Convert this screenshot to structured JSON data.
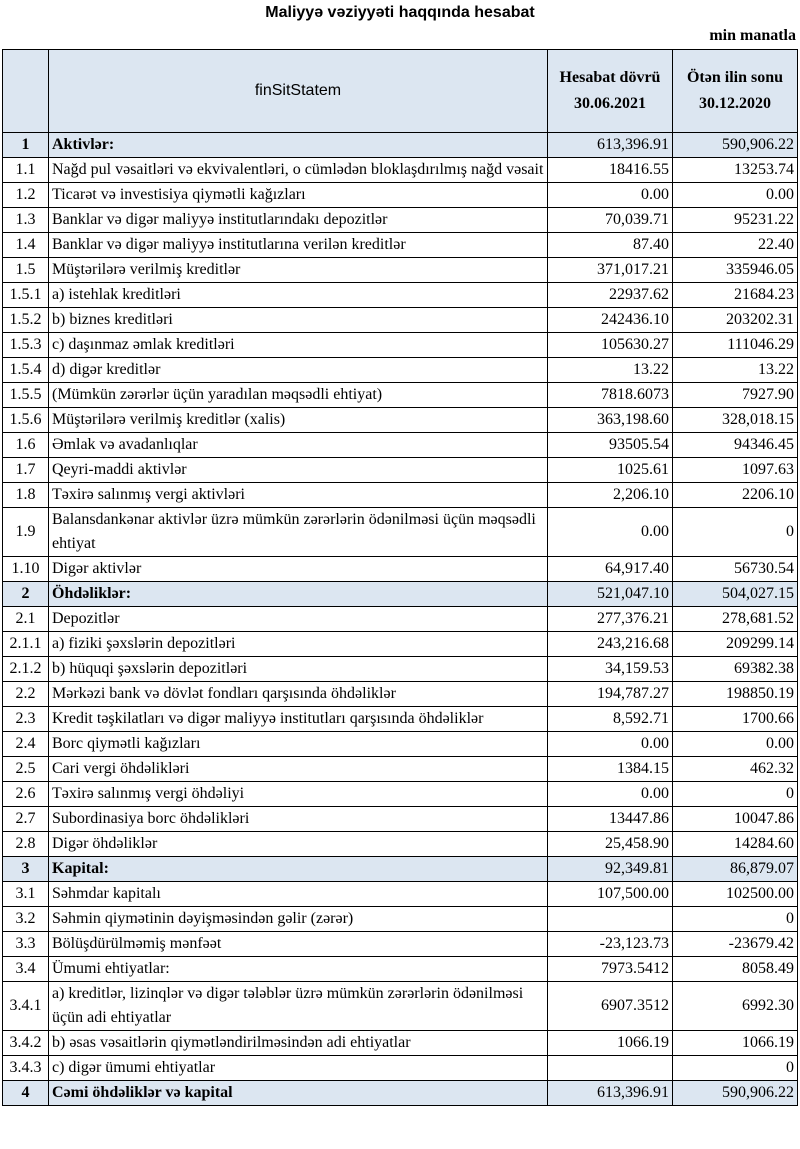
{
  "title": "Maliyyə vəziyyəti haqqında hesabat",
  "unit": "min manatla",
  "header": {
    "name": "finSitStatem",
    "col1_line1": "Hesabat dövrü",
    "col1_line2": "30.06.2021",
    "col2_line1": "Ötən ilin sonu",
    "col2_line2": "30.12.2020"
  },
  "highlight_color": "#dce6f1",
  "rows": [
    {
      "num": "1",
      "label": "Aktivlər:",
      "cur": "613,396.91",
      "prev": "590,906.22",
      "hl": true
    },
    {
      "num": "1.1",
      "label": "Nağd pul vəsaitləri və  ekvivalentləri, o cümlədən bloklaşdırılmış nağd vəsait",
      "cur": "18416.55",
      "prev": "13253.74"
    },
    {
      "num": "1.2",
      "label": "Ticarət və investisiya qiymətli kağızları",
      "cur": "0.00",
      "prev": "0.00"
    },
    {
      "num": "1.3",
      "label": "Banklar və digər maliyyə institutlarındakı depozitlər",
      "cur": "70,039.71",
      "prev": "95231.22"
    },
    {
      "num": "1.4",
      "label": "Banklar və digər maliyyə institutlarına verilən kreditlər",
      "cur": "87.40",
      "prev": "22.40"
    },
    {
      "num": "1.5",
      "label": "Müştərilərə verilmiş kreditlər",
      "cur": "371,017.21",
      "prev": "335946.05"
    },
    {
      "num": "1.5.1",
      "label": "a) istehlak kreditləri",
      "cur": "22937.62",
      "prev": "21684.23"
    },
    {
      "num": "1.5.2",
      "label": "b) biznes kreditləri",
      "cur": "242436.10",
      "prev": "203202.31"
    },
    {
      "num": "1.5.3",
      "label": "c) daşınmaz əmlak kreditləri",
      "cur": "105630.27",
      "prev": "111046.29"
    },
    {
      "num": "1.5.4",
      "label": "d) digər kreditlər",
      "cur": "13.22",
      "prev": "13.22"
    },
    {
      "num": "1.5.5",
      "label": "(Mümkün zərərlər üçün yaradılan məqsədli ehtiyat)",
      "cur": "7818.6073",
      "prev": "7927.90"
    },
    {
      "num": "1.5.6",
      "label": "Müştərilərə verilmiş kreditlər (xalis)",
      "cur": "363,198.60",
      "prev": "328,018.15"
    },
    {
      "num": "1.6",
      "label": "Əmlak və avadanlıqlar",
      "cur": "93505.54",
      "prev": "94346.45"
    },
    {
      "num": "1.7",
      "label": "Qeyri-maddi aktivlər",
      "cur": "1025.61",
      "prev": "1097.63"
    },
    {
      "num": "1.8",
      "label": "Təxirə salınmış vergi aktivləri",
      "cur": "2,206.10",
      "prev": "2206.10"
    },
    {
      "num": "1.9",
      "label": "Balansdankənar aktivlər üzrə mümkün zərərlərin ödənilməsi üçün məqsədli ehtiyat",
      "cur": "0.00",
      "prev": "0"
    },
    {
      "num": "1.10",
      "label": "Digər aktivlər",
      "cur": "64,917.40",
      "prev": "56730.54"
    },
    {
      "num": "2",
      "label": "Öhdəliklər:",
      "cur": "521,047.10",
      "prev": "504,027.15",
      "hl": true
    },
    {
      "num": "2.1",
      "label": "Depozitlər",
      "cur": "277,376.21",
      "prev": "278,681.52"
    },
    {
      "num": "2.1.1",
      "label": "a) fiziki şəxslərin depozitləri",
      "cur": "243,216.68",
      "prev": "209299.14"
    },
    {
      "num": "2.1.2",
      "label": "b) hüquqi şəxslərin depozitləri",
      "cur": "34,159.53",
      "prev": "69382.38"
    },
    {
      "num": "2.2",
      "label": "Mərkəzi bank və dövlət fondları qarşısında öhdəliklər",
      "cur": "194,787.27",
      "prev": "198850.19"
    },
    {
      "num": "2.3",
      "label": "Kredit təşkilatları və digər maliyyə institutları qarşısında öhdəliklər",
      "cur": "8,592.71",
      "prev": "1700.66"
    },
    {
      "num": "2.4",
      "label": "Borc qiymətli kağızları",
      "cur": "0.00",
      "prev": "0.00"
    },
    {
      "num": "2.5",
      "label": "Cari vergi öhdəlikləri",
      "cur": "1384.15",
      "prev": "462.32"
    },
    {
      "num": "2.6",
      "label": "Təxirə salınmış vergi öhdəliyi",
      "cur": "0.00",
      "prev": "0"
    },
    {
      "num": "2.7",
      "label": "Subordinasiya borc öhdəlikləri",
      "cur": "13447.86",
      "prev": "10047.86"
    },
    {
      "num": "2.8",
      "label": "Digər öhdəliklər",
      "cur": "25,458.90",
      "prev": "14284.60"
    },
    {
      "num": "3",
      "label": "Kapital:",
      "cur": "92,349.81",
      "prev": "86,879.07",
      "hl": true
    },
    {
      "num": "3.1",
      "label": "Səhmdar kapitalı",
      "cur": "107,500.00",
      "prev": "102500.00"
    },
    {
      "num": "3.2",
      "label": "Səhmin qiymətinin dəyişməsindən gəlir (zərər)",
      "cur": "",
      "prev": "0"
    },
    {
      "num": "3.3",
      "label": "Bölüşdürülməmiş mənfəət",
      "cur": "-23,123.73",
      "prev": "-23679.42"
    },
    {
      "num": "3.4",
      "label": "Ümumi ehtiyatlar:",
      "cur": "7973.5412",
      "prev": "8058.49"
    },
    {
      "num": "3.4.1",
      "label": "a) kreditlər, lizinqlər və digər tələblər üzrə mümkün zərərlərin ödənilməsi üçün adi ehtiyatlar",
      "cur": "6907.3512",
      "prev": "6992.30"
    },
    {
      "num": "3.4.2",
      "label": "b) əsas vəsaitlərin qiymətləndirilməsindən adi ehtiyatlar",
      "cur": "1066.19",
      "prev": "1066.19"
    },
    {
      "num": "3.4.3",
      "label": "c) digər ümumi ehtiyatlar",
      "cur": "",
      "prev": "0"
    },
    {
      "num": "4",
      "label": "Cəmi öhdəliklər və kapital",
      "cur": "613,396.91",
      "prev": "590,906.22",
      "hl": true
    }
  ]
}
